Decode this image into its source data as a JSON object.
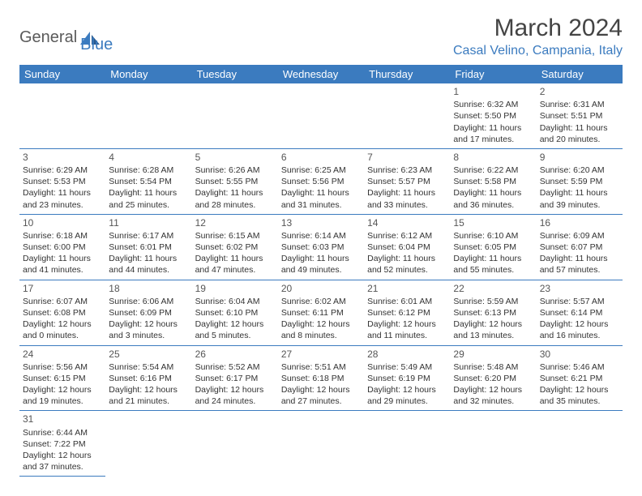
{
  "logo": {
    "part1": "General",
    "part2": "Blue"
  },
  "title": "March 2024",
  "location": "Casal Velino, Campania, Italy",
  "colors": {
    "brand": "#3b7bbf",
    "text": "#333",
    "bg": "#ffffff"
  },
  "days_of_week": [
    "Sunday",
    "Monday",
    "Tuesday",
    "Wednesday",
    "Thursday",
    "Friday",
    "Saturday"
  ],
  "weeks": [
    [
      null,
      null,
      null,
      null,
      null,
      {
        "n": "1",
        "sr": "Sunrise: 6:32 AM",
        "ss": "Sunset: 5:50 PM",
        "d1": "Daylight: 11 hours",
        "d2": "and 17 minutes."
      },
      {
        "n": "2",
        "sr": "Sunrise: 6:31 AM",
        "ss": "Sunset: 5:51 PM",
        "d1": "Daylight: 11 hours",
        "d2": "and 20 minutes."
      }
    ],
    [
      {
        "n": "3",
        "sr": "Sunrise: 6:29 AM",
        "ss": "Sunset: 5:53 PM",
        "d1": "Daylight: 11 hours",
        "d2": "and 23 minutes."
      },
      {
        "n": "4",
        "sr": "Sunrise: 6:28 AM",
        "ss": "Sunset: 5:54 PM",
        "d1": "Daylight: 11 hours",
        "d2": "and 25 minutes."
      },
      {
        "n": "5",
        "sr": "Sunrise: 6:26 AM",
        "ss": "Sunset: 5:55 PM",
        "d1": "Daylight: 11 hours",
        "d2": "and 28 minutes."
      },
      {
        "n": "6",
        "sr": "Sunrise: 6:25 AM",
        "ss": "Sunset: 5:56 PM",
        "d1": "Daylight: 11 hours",
        "d2": "and 31 minutes."
      },
      {
        "n": "7",
        "sr": "Sunrise: 6:23 AM",
        "ss": "Sunset: 5:57 PM",
        "d1": "Daylight: 11 hours",
        "d2": "and 33 minutes."
      },
      {
        "n": "8",
        "sr": "Sunrise: 6:22 AM",
        "ss": "Sunset: 5:58 PM",
        "d1": "Daylight: 11 hours",
        "d2": "and 36 minutes."
      },
      {
        "n": "9",
        "sr": "Sunrise: 6:20 AM",
        "ss": "Sunset: 5:59 PM",
        "d1": "Daylight: 11 hours",
        "d2": "and 39 minutes."
      }
    ],
    [
      {
        "n": "10",
        "sr": "Sunrise: 6:18 AM",
        "ss": "Sunset: 6:00 PM",
        "d1": "Daylight: 11 hours",
        "d2": "and 41 minutes."
      },
      {
        "n": "11",
        "sr": "Sunrise: 6:17 AM",
        "ss": "Sunset: 6:01 PM",
        "d1": "Daylight: 11 hours",
        "d2": "and 44 minutes."
      },
      {
        "n": "12",
        "sr": "Sunrise: 6:15 AM",
        "ss": "Sunset: 6:02 PM",
        "d1": "Daylight: 11 hours",
        "d2": "and 47 minutes."
      },
      {
        "n": "13",
        "sr": "Sunrise: 6:14 AM",
        "ss": "Sunset: 6:03 PM",
        "d1": "Daylight: 11 hours",
        "d2": "and 49 minutes."
      },
      {
        "n": "14",
        "sr": "Sunrise: 6:12 AM",
        "ss": "Sunset: 6:04 PM",
        "d1": "Daylight: 11 hours",
        "d2": "and 52 minutes."
      },
      {
        "n": "15",
        "sr": "Sunrise: 6:10 AM",
        "ss": "Sunset: 6:05 PM",
        "d1": "Daylight: 11 hours",
        "d2": "and 55 minutes."
      },
      {
        "n": "16",
        "sr": "Sunrise: 6:09 AM",
        "ss": "Sunset: 6:07 PM",
        "d1": "Daylight: 11 hours",
        "d2": "and 57 minutes."
      }
    ],
    [
      {
        "n": "17",
        "sr": "Sunrise: 6:07 AM",
        "ss": "Sunset: 6:08 PM",
        "d1": "Daylight: 12 hours",
        "d2": "and 0 minutes."
      },
      {
        "n": "18",
        "sr": "Sunrise: 6:06 AM",
        "ss": "Sunset: 6:09 PM",
        "d1": "Daylight: 12 hours",
        "d2": "and 3 minutes."
      },
      {
        "n": "19",
        "sr": "Sunrise: 6:04 AM",
        "ss": "Sunset: 6:10 PM",
        "d1": "Daylight: 12 hours",
        "d2": "and 5 minutes."
      },
      {
        "n": "20",
        "sr": "Sunrise: 6:02 AM",
        "ss": "Sunset: 6:11 PM",
        "d1": "Daylight: 12 hours",
        "d2": "and 8 minutes."
      },
      {
        "n": "21",
        "sr": "Sunrise: 6:01 AM",
        "ss": "Sunset: 6:12 PM",
        "d1": "Daylight: 12 hours",
        "d2": "and 11 minutes."
      },
      {
        "n": "22",
        "sr": "Sunrise: 5:59 AM",
        "ss": "Sunset: 6:13 PM",
        "d1": "Daylight: 12 hours",
        "d2": "and 13 minutes."
      },
      {
        "n": "23",
        "sr": "Sunrise: 5:57 AM",
        "ss": "Sunset: 6:14 PM",
        "d1": "Daylight: 12 hours",
        "d2": "and 16 minutes."
      }
    ],
    [
      {
        "n": "24",
        "sr": "Sunrise: 5:56 AM",
        "ss": "Sunset: 6:15 PM",
        "d1": "Daylight: 12 hours",
        "d2": "and 19 minutes."
      },
      {
        "n": "25",
        "sr": "Sunrise: 5:54 AM",
        "ss": "Sunset: 6:16 PM",
        "d1": "Daylight: 12 hours",
        "d2": "and 21 minutes."
      },
      {
        "n": "26",
        "sr": "Sunrise: 5:52 AM",
        "ss": "Sunset: 6:17 PM",
        "d1": "Daylight: 12 hours",
        "d2": "and 24 minutes."
      },
      {
        "n": "27",
        "sr": "Sunrise: 5:51 AM",
        "ss": "Sunset: 6:18 PM",
        "d1": "Daylight: 12 hours",
        "d2": "and 27 minutes."
      },
      {
        "n": "28",
        "sr": "Sunrise: 5:49 AM",
        "ss": "Sunset: 6:19 PM",
        "d1": "Daylight: 12 hours",
        "d2": "and 29 minutes."
      },
      {
        "n": "29",
        "sr": "Sunrise: 5:48 AM",
        "ss": "Sunset: 6:20 PM",
        "d1": "Daylight: 12 hours",
        "d2": "and 32 minutes."
      },
      {
        "n": "30",
        "sr": "Sunrise: 5:46 AM",
        "ss": "Sunset: 6:21 PM",
        "d1": "Daylight: 12 hours",
        "d2": "and 35 minutes."
      }
    ],
    [
      {
        "n": "31",
        "sr": "Sunrise: 6:44 AM",
        "ss": "Sunset: 7:22 PM",
        "d1": "Daylight: 12 hours",
        "d2": "and 37 minutes."
      },
      null,
      null,
      null,
      null,
      null,
      null
    ]
  ]
}
